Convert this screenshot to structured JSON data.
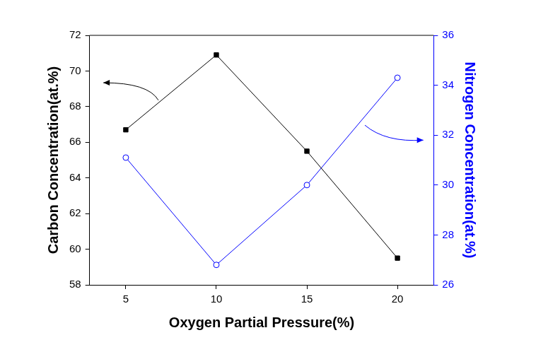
{
  "chart_data": {
    "type": "line",
    "xlabel": "Oxygen Partial Pressure(%)",
    "ylabel": "Carbon Concentration(at.%)",
    "y2label": "Nitrogen Concentration(at.%)",
    "x": [
      5,
      10,
      15,
      20
    ],
    "series": [
      {
        "color": "#000000",
        "marker": "square",
        "values": [
          66.7,
          70.9,
          65.5,
          59.5
        ]
      },
      {
        "color": "#0000ff",
        "marker": "circle_open",
        "axis": "y2",
        "values": [
          31.1,
          26.8,
          30.0,
          34.3
        ]
      }
    ],
    "xlim": [
      3,
      22
    ],
    "xticks": [
      5,
      10,
      15,
      20
    ],
    "ylim": [
      58,
      72
    ],
    "yticks": [
      58,
      60,
      62,
      64,
      66,
      68,
      70,
      72
    ],
    "y2lim": [
      26,
      36
    ],
    "y2ticks": [
      26,
      28,
      30,
      32,
      34,
      36
    ],
    "grid": false
  }
}
